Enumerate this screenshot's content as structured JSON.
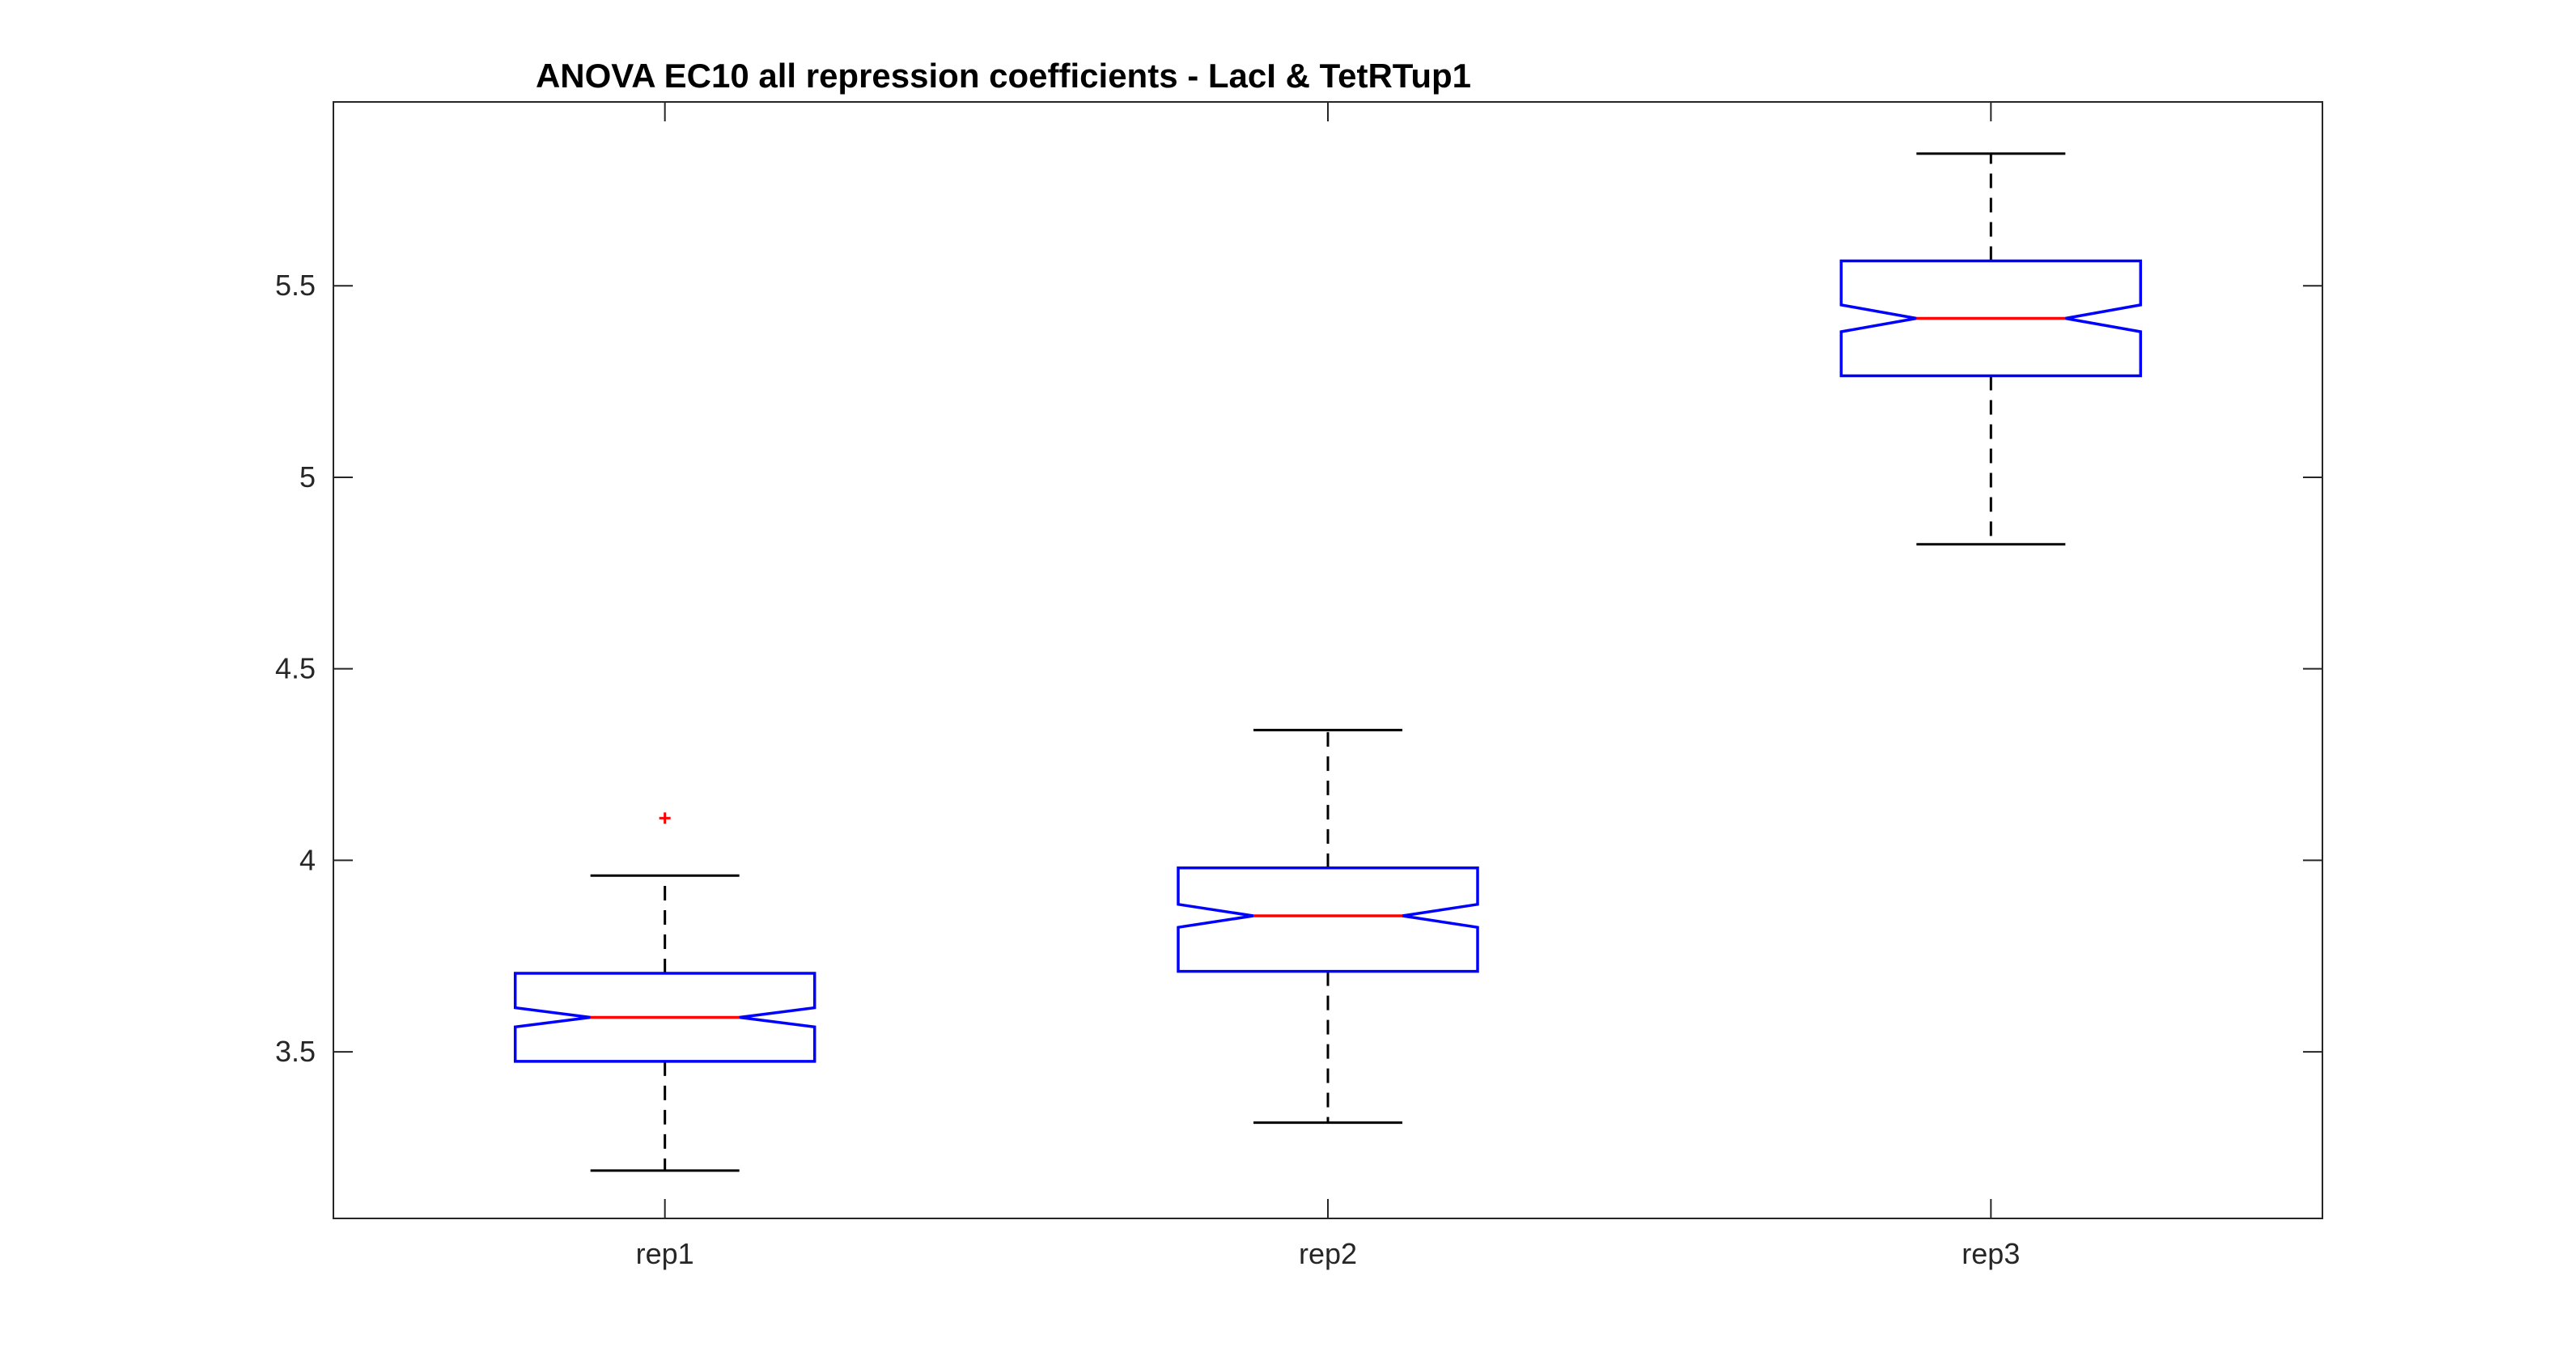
{
  "chart_data": {
    "type": "box",
    "title": "ANOVA  EC10 all repression coefficients - LacI & TetRTup1",
    "xlabel": "",
    "ylabel": "",
    "categories": [
      "rep1",
      "rep2",
      "rep3"
    ],
    "ylim": [
      3.065,
      5.98
    ],
    "yticks": [
      3.5,
      4,
      4.5,
      5,
      5.5
    ],
    "ytick_labels": [
      "3.5",
      "4",
      "4.5",
      "5",
      "5.5"
    ],
    "notched": true,
    "grid": false,
    "boxes": [
      {
        "name": "rep1",
        "whisker_low": 3.19,
        "q1": 3.475,
        "median": 3.59,
        "q3": 3.705,
        "whisker_high": 3.96,
        "notch_low": 3.565,
        "notch_high": 3.615,
        "outliers": [
          4.11
        ]
      },
      {
        "name": "rep2",
        "whisker_low": 3.315,
        "q1": 3.71,
        "median": 3.855,
        "q3": 3.98,
        "whisker_high": 4.34,
        "notch_low": 3.825,
        "notch_high": 3.885,
        "outliers": []
      },
      {
        "name": "rep3",
        "whisker_low": 4.825,
        "q1": 5.265,
        "median": 5.415,
        "q3": 5.565,
        "whisker_high": 5.845,
        "notch_low": 5.38,
        "notch_high": 5.45,
        "outliers": []
      }
    ],
    "colors": {
      "box": "#0000ff",
      "median": "#ff0000",
      "whisker": "#000000",
      "outlier": "#ff0000",
      "axis": "#262626"
    }
  }
}
